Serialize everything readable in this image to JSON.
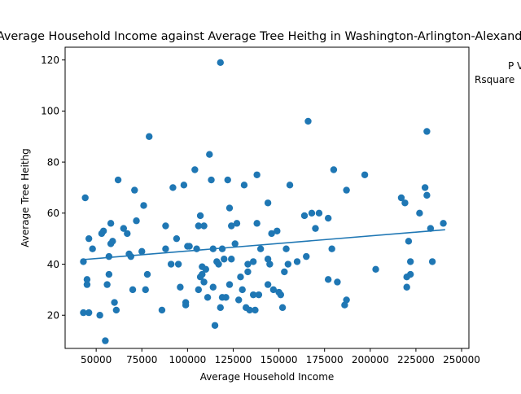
{
  "chart_data": {
    "type": "scatter",
    "title": "Average Household Income against Average Tree Heithg in Washington-Arlington-Alexandria",
    "xlabel": "Average Household Income",
    "ylabel": "Average Tree Heithg",
    "xlim": [
      33000,
      254000
    ],
    "ylim": [
      7,
      125
    ],
    "xticks": [
      50000,
      75000,
      100000,
      125000,
      150000,
      175000,
      200000,
      225000,
      250000
    ],
    "yticks": [
      20,
      40,
      60,
      80,
      100,
      120
    ],
    "grid": false,
    "point_color": "#1f77b4",
    "line_color": "#1f77b4",
    "annotations": [
      "P V",
      "Rsquare"
    ],
    "trendline": {
      "x": [
        43000,
        241000
      ],
      "y": [
        41.8,
        53.5
      ]
    },
    "points": [
      [
        44000,
        66
      ],
      [
        43000,
        41
      ],
      [
        43000,
        21
      ],
      [
        45000,
        32
      ],
      [
        45000,
        34
      ],
      [
        46000,
        21
      ],
      [
        46000,
        50
      ],
      [
        48000,
        46
      ],
      [
        52000,
        20
      ],
      [
        53000,
        52
      ],
      [
        54000,
        53
      ],
      [
        55000,
        10
      ],
      [
        56000,
        32
      ],
      [
        57000,
        43
      ],
      [
        57000,
        36
      ],
      [
        58000,
        48
      ],
      [
        58000,
        56
      ],
      [
        59000,
        49
      ],
      [
        60000,
        25
      ],
      [
        61000,
        22
      ],
      [
        62000,
        73
      ],
      [
        65000,
        54
      ],
      [
        67000,
        52
      ],
      [
        68000,
        44
      ],
      [
        69000,
        43
      ],
      [
        70000,
        30
      ],
      [
        71000,
        69
      ],
      [
        72000,
        57
      ],
      [
        75000,
        45
      ],
      [
        76000,
        63
      ],
      [
        77000,
        30
      ],
      [
        78000,
        36
      ],
      [
        79000,
        90
      ],
      [
        86000,
        22
      ],
      [
        88000,
        55
      ],
      [
        88000,
        46
      ],
      [
        91000,
        40
      ],
      [
        92000,
        70
      ],
      [
        94000,
        50
      ],
      [
        95000,
        40
      ],
      [
        96000,
        31
      ],
      [
        98000,
        71
      ],
      [
        99000,
        24
      ],
      [
        99000,
        25
      ],
      [
        100000,
        47
      ],
      [
        101000,
        47
      ],
      [
        104000,
        77
      ],
      [
        105000,
        46
      ],
      [
        106000,
        55
      ],
      [
        106000,
        30
      ],
      [
        107000,
        59
      ],
      [
        107000,
        35
      ],
      [
        108000,
        39
      ],
      [
        108000,
        36
      ],
      [
        109000,
        55
      ],
      [
        109000,
        33
      ],
      [
        110000,
        38
      ],
      [
        111000,
        27
      ],
      [
        112000,
        83
      ],
      [
        113000,
        73
      ],
      [
        114000,
        46
      ],
      [
        114000,
        31
      ],
      [
        115000,
        16
      ],
      [
        116000,
        41
      ],
      [
        117000,
        40
      ],
      [
        118000,
        119
      ],
      [
        118000,
        23
      ],
      [
        119000,
        27
      ],
      [
        119000,
        46
      ],
      [
        120000,
        42
      ],
      [
        121000,
        27
      ],
      [
        122000,
        73
      ],
      [
        123000,
        62
      ],
      [
        123000,
        32
      ],
      [
        124000,
        55
      ],
      [
        124000,
        42
      ],
      [
        126000,
        48
      ],
      [
        127000,
        56
      ],
      [
        128000,
        26
      ],
      [
        129000,
        35
      ],
      [
        130000,
        30
      ],
      [
        131000,
        71
      ],
      [
        132000,
        23
      ],
      [
        133000,
        40
      ],
      [
        133000,
        37
      ],
      [
        134000,
        22
      ],
      [
        136000,
        28
      ],
      [
        136000,
        41
      ],
      [
        137000,
        22
      ],
      [
        138000,
        75
      ],
      [
        138000,
        56
      ],
      [
        139000,
        28
      ],
      [
        140000,
        46
      ],
      [
        144000,
        42
      ],
      [
        144000,
        64
      ],
      [
        144000,
        32
      ],
      [
        145000,
        40
      ],
      [
        146000,
        52
      ],
      [
        147000,
        30
      ],
      [
        149000,
        53
      ],
      [
        150000,
        29
      ],
      [
        151000,
        28
      ],
      [
        152000,
        23
      ],
      [
        153000,
        37
      ],
      [
        154000,
        46
      ],
      [
        155000,
        40
      ],
      [
        156000,
        71
      ],
      [
        160000,
        41
      ],
      [
        164000,
        59
      ],
      [
        165000,
        43
      ],
      [
        166000,
        96
      ],
      [
        168000,
        60
      ],
      [
        170000,
        54
      ],
      [
        172000,
        60
      ],
      [
        177000,
        34
      ],
      [
        177000,
        58
      ],
      [
        179000,
        46
      ],
      [
        180000,
        77
      ],
      [
        182000,
        33
      ],
      [
        186000,
        24
      ],
      [
        187000,
        26
      ],
      [
        187000,
        69
      ],
      [
        197000,
        75
      ],
      [
        203000,
        38
      ],
      [
        217000,
        66
      ],
      [
        219000,
        64
      ],
      [
        220000,
        35
      ],
      [
        220000,
        31
      ],
      [
        221000,
        49
      ],
      [
        222000,
        41
      ],
      [
        222000,
        36
      ],
      [
        227000,
        60
      ],
      [
        230000,
        70
      ],
      [
        231000,
        92
      ],
      [
        231000,
        67
      ],
      [
        233000,
        54
      ],
      [
        234000,
        41
      ],
      [
        240000,
        56
      ]
    ]
  }
}
